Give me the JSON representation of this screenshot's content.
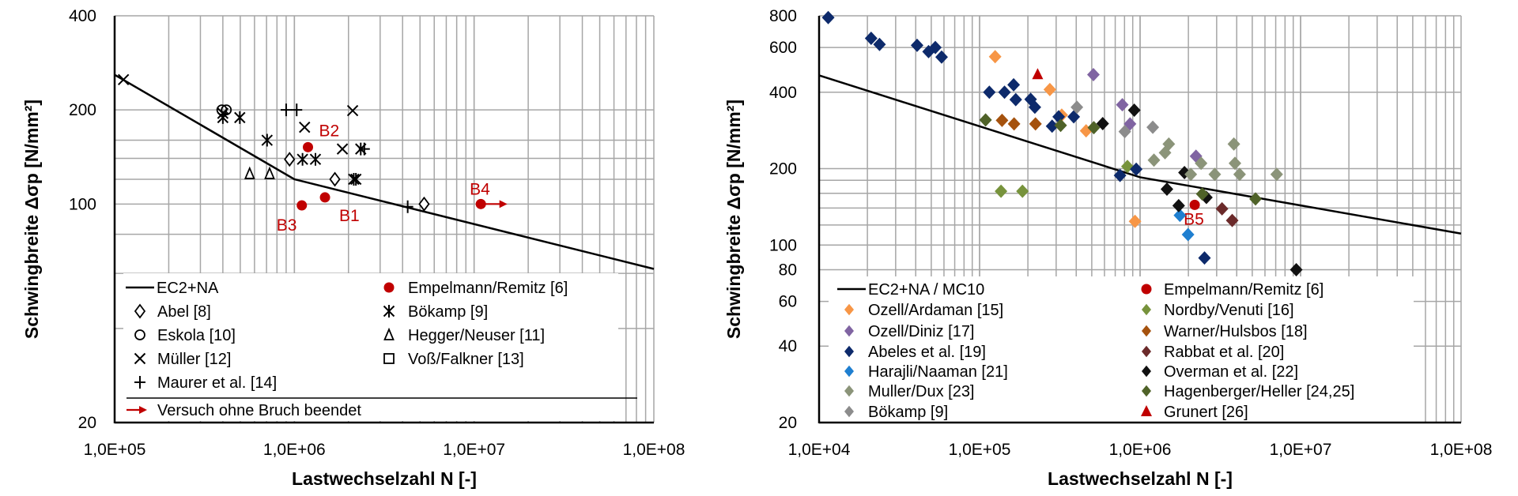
{
  "chart_data": [
    {
      "type": "scatter",
      "xscale": "log",
      "yscale": "log",
      "xlim": [
        100000,
        100000000
      ],
      "ylim": [
        20,
        400
      ],
      "xticks": [
        "1,0E+05",
        "1,0E+06",
        "1,0E+07",
        "1,0E+08"
      ],
      "yticks": [
        "400",
        "200",
        "100",
        "20"
      ],
      "ygrid": [
        20,
        40,
        60,
        80,
        100,
        120,
        140,
        160,
        200,
        400
      ],
      "grid": true,
      "xlabel": "Lastwechselzahl N [-]",
      "ylabel": "Schwingbreite Δσp [N/mm²]",
      "legend_placement": "bottom-inside",
      "curve": {
        "name": "EC2+NA",
        "color": "#000000",
        "points": [
          [
            100000,
            259
          ],
          [
            1000000,
            120
          ],
          [
            100000000,
            62
          ]
        ]
      },
      "series": [
        {
          "name": "Empelmann/Remitz [6]",
          "marker": "filled-circle",
          "color": "#c00000",
          "points": [
            [
              1480000,
              105,
              "B1"
            ],
            [
              1190000,
              152,
              "B2"
            ],
            [
              1100000,
              99,
              "B3"
            ],
            [
              10900000,
              100,
              "B4"
            ]
          ]
        },
        {
          "name": "Abel [8]",
          "marker": "open-diamond",
          "color": "#000000",
          "points": [
            [
              940000,
              139
            ],
            [
              1680000,
              120
            ],
            [
              5270000,
              100
            ]
          ]
        },
        {
          "name": "Bökamp [9]",
          "marker": "asterisk",
          "color": "#000000",
          "points": [
            [
              400000,
              189
            ],
            [
              497000,
              189
            ],
            [
              705000,
              160
            ],
            [
              1110000,
              139
            ],
            [
              1310000,
              139
            ],
            [
              2340000,
              150
            ],
            [
              2140000,
              120
            ],
            [
              2200000,
              120
            ]
          ]
        },
        {
          "name": "Eskola [10]",
          "marker": "open-circle",
          "color": "#000000",
          "points": [
            [
              395000,
              200
            ],
            [
              418000,
              200
            ]
          ]
        },
        {
          "name": "Hegger/Neuser [11]",
          "marker": "open-triangle",
          "color": "#000000",
          "points": [
            [
              564000,
              125
            ],
            [
              728000,
              125
            ]
          ]
        },
        {
          "name": "Müller [12]",
          "marker": "x",
          "color": "#000000",
          "points": [
            [
              112000,
              250
            ],
            [
              1140000,
              176
            ],
            [
              1850000,
              150
            ],
            [
              2110000,
              199
            ],
            [
              400000,
              195
            ]
          ]
        },
        {
          "name": "Voß/Falkner [13]",
          "marker": "open-square",
          "color": "#000000",
          "points": []
        },
        {
          "name": "Maurer et al. [14]",
          "marker": "plus",
          "color": "#000000",
          "points": [
            [
              900000,
              200
            ],
            [
              1030000,
              200
            ],
            [
              2450000,
              150
            ],
            [
              4270000,
              98
            ]
          ]
        }
      ],
      "legend_order": [
        "EC2+NA",
        "Empelmann/Remitz [6]",
        "Abel [8]",
        "Bökamp [9]",
        "Eskola [10]",
        "Hegger/Neuser [11]",
        "Müller [12]",
        "Voß/Falkner [13]",
        "Maurer et al. [14]"
      ],
      "runout": {
        "label": "Versuch ohne Bruch beendet",
        "color": "#c00000",
        "from": [
          10900000,
          100
        ],
        "to": [
          15300000,
          100
        ]
      }
    },
    {
      "type": "scatter",
      "xscale": "log",
      "yscale": "log",
      "xlim": [
        10000,
        100000000
      ],
      "ylim": [
        20,
        800
      ],
      "xticks": [
        "1,0E+04",
        "1,0E+05",
        "1,0E+06",
        "1,0E+07",
        "1,0E+08"
      ],
      "yticks": [
        "800",
        "600",
        "400",
        "200",
        "100",
        "80",
        "60",
        "40",
        "20"
      ],
      "ygrid": [
        20,
        40,
        60,
        80,
        100,
        120,
        140,
        160,
        180,
        200,
        400,
        600,
        800
      ],
      "grid": true,
      "xlabel": "Lastwechselzahl N [-]",
      "ylabel": "Schwingbreite Δσp [N/mm²]",
      "legend_placement": "bottom-inside",
      "curve": {
        "name": "EC2+NA / MC10",
        "color": "#000000",
        "points": [
          [
            10000,
            466
          ],
          [
            1000000,
            185
          ],
          [
            100000000,
            111
          ]
        ]
      },
      "series": [
        {
          "name": "Empelmann/Remitz [6]",
          "marker": "filled-circle",
          "color": "#c00000",
          "points": [
            [
              2190000,
              144,
              "B5"
            ]
          ]
        },
        {
          "name": "Ozell/Ardaman [15]",
          "marker": "filled-diamond",
          "color": "#f79646",
          "points": [
            [
              125000,
              552
            ],
            [
              274000,
              410
            ],
            [
              325000,
              325
            ],
            [
              461000,
              282
            ],
            [
              930000,
              124
            ]
          ]
        },
        {
          "name": "Nordby/Venuti [16]",
          "marker": "filled-diamond",
          "color": "#77933c",
          "points": [
            [
              136000,
              163
            ],
            [
              185000,
              163
            ],
            [
              834000,
              204
            ]
          ]
        },
        {
          "name": "Ozell/Diniz [17]",
          "marker": "filled-diamond",
          "color": "#8064a2",
          "points": [
            [
              512000,
              469
            ],
            [
              775000,
              357
            ],
            [
              866000,
              300
            ],
            [
              2230000,
              224
            ]
          ]
        },
        {
          "name": "Warner/Hulsbos [18]",
          "marker": "filled-diamond",
          "color": "#a5520e",
          "points": [
            [
              138000,
              310
            ],
            [
              164000,
              300
            ],
            [
              223000,
              300
            ]
          ]
        },
        {
          "name": "Abeles et al. [19]",
          "marker": "filled-diamond",
          "color": "#0d2a6b",
          "points": [
            [
              11400,
              787
            ],
            [
              21100,
              652
            ],
            [
              23800,
              617
            ],
            [
              40800,
              612
            ],
            [
              48100,
              578
            ],
            [
              53000,
              600
            ],
            [
              58000,
              550
            ],
            [
              115000,
              400
            ],
            [
              143000,
              400
            ],
            [
              163000,
              428
            ],
            [
              168000,
              374
            ],
            [
              208000,
              375
            ],
            [
              221000,
              349
            ],
            [
              311000,
              320
            ],
            [
              283000,
              294
            ],
            [
              386000,
              320
            ],
            [
              750000,
              188
            ],
            [
              946000,
              199
            ],
            [
              2520000,
              89
            ]
          ]
        },
        {
          "name": "Rabbat et al. [20]",
          "marker": "filled-diamond",
          "color": "#6b2a2a",
          "points": [
            [
              3240000,
              139
            ],
            [
              3750000,
              125
            ]
          ]
        },
        {
          "name": "Harajli/Naaman [21]",
          "marker": "filled-diamond",
          "color": "#1f7fd0",
          "points": [
            [
              1770000,
              131
            ],
            [
              1990000,
              110
            ]
          ]
        },
        {
          "name": "Overman et al. [22]",
          "marker": "filled-diamond",
          "color": "#111111",
          "points": [
            [
              920000,
              340
            ],
            [
              585000,
              301
            ],
            [
              1470000,
              166
            ],
            [
              1740000,
              143
            ],
            [
              1890000,
              193
            ],
            [
              2590000,
              154
            ],
            [
              9400000,
              80
            ]
          ]
        },
        {
          "name": "Muller/Dux [23]",
          "marker": "filled-diamond",
          "color": "#8b9479",
          "points": [
            [
              1510000,
              250
            ],
            [
              1430000,
              231
            ],
            [
              1220000,
              216
            ],
            [
              2070000,
              190
            ],
            [
              2400000,
              210
            ],
            [
              2920000,
              190
            ],
            [
              3840000,
              250
            ],
            [
              3900000,
              210
            ],
            [
              4170000,
              190
            ],
            [
              7100000,
              190
            ]
          ]
        },
        {
          "name": "Hagenberger/Heller [24,25]",
          "marker": "filled-diamond",
          "color": "#4f6228",
          "points": [
            [
              109000,
              311
            ],
            [
              320000,
              296
            ],
            [
              515000,
              290
            ],
            [
              2440000,
              159
            ],
            [
              5240000,
              152
            ]
          ]
        },
        {
          "name": "Bökamp [9]",
          "marker": "filled-diamond",
          "color": "#8c8c8c",
          "points": [
            [
              404000,
              349
            ],
            [
              803000,
              280
            ],
            [
              1200000,
              291
            ]
          ]
        },
        {
          "name": "Grunert [26]",
          "marker": "filled-triangle",
          "color": "#c00000",
          "points": [
            [
              230000,
              470
            ]
          ]
        }
      ],
      "legend_order": [
        "EC2+NA / MC10",
        "Empelmann/Remitz [6]",
        "Ozell/Ardaman [15]",
        "Nordby/Venuti [16]",
        "Ozell/Diniz [17]",
        "Warner/Hulsbos [18]",
        "Abeles et al. [19]",
        "Rabbat et al. [20]",
        "Harajli/Naaman [21]",
        "Overman et al. [22]",
        "Muller/Dux [23]",
        "Hagenberger/Heller [24,25]",
        "Bökamp [9]",
        "Grunert [26]"
      ]
    }
  ]
}
